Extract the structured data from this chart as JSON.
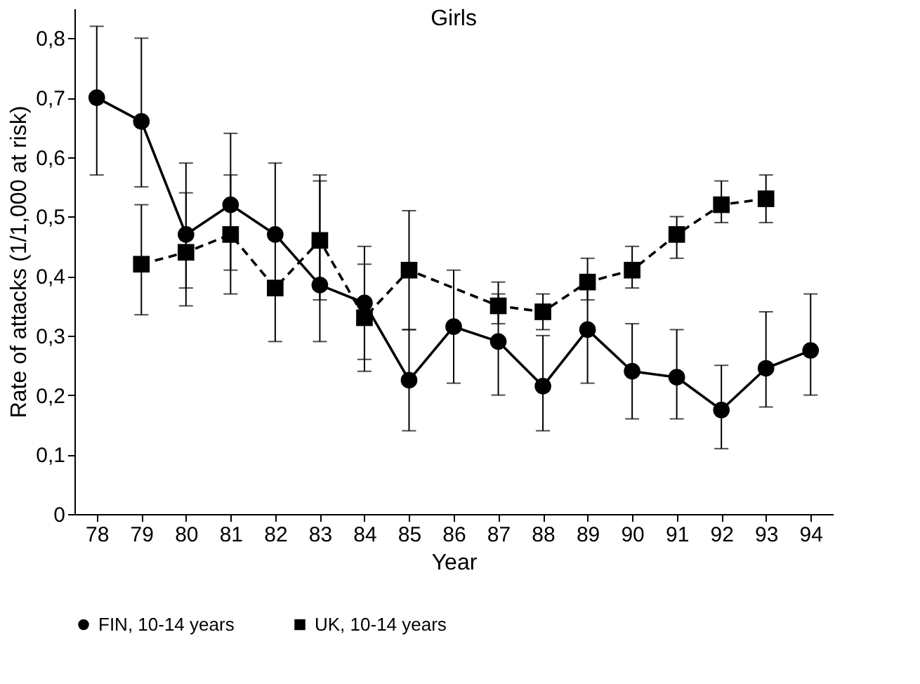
{
  "chart_data": {
    "type": "line",
    "title": "Girls",
    "xlabel": "Year",
    "ylabel": "Rate of attacks (1/1,000 at risk)",
    "xlim": [
      77.5,
      94.5
    ],
    "xticks": [
      78,
      79,
      80,
      81,
      82,
      83,
      84,
      85,
      86,
      87,
      88,
      89,
      90,
      91,
      92,
      93,
      94
    ],
    "ylim": [
      0,
      0.85
    ],
    "yticks": [
      {
        "value": 0,
        "label": "0"
      },
      {
        "value": 0.1,
        "label": "0,1"
      },
      {
        "value": 0.2,
        "label": "0,2"
      },
      {
        "value": 0.3,
        "label": "0,3"
      },
      {
        "value": 0.4,
        "label": "0,4"
      },
      {
        "value": 0.5,
        "label": "0,5"
      },
      {
        "value": 0.6,
        "label": "0,6"
      },
      {
        "value": 0.7,
        "label": "0,7"
      },
      {
        "value": 0.8,
        "label": "0,8"
      }
    ],
    "grid": false,
    "legend": "bottom",
    "series": [
      {
        "name": "FIN, 10-14 years",
        "color": "#000000",
        "marker": "circle",
        "line_style": "solid",
        "x": [
          78,
          79,
          80,
          81,
          82,
          83,
          84,
          85,
          86,
          87,
          88,
          89,
          90,
          91,
          92,
          93,
          94
        ],
        "values": [
          0.7,
          0.66,
          0.47,
          0.52,
          0.47,
          0.385,
          0.355,
          0.225,
          0.315,
          0.29,
          0.215,
          0.31,
          0.24,
          0.23,
          0.175,
          0.245,
          0.275
        ],
        "errors": [
          [
            0.57,
            0.82
          ],
          [
            0.55,
            0.8
          ],
          [
            0.38,
            0.59
          ],
          [
            0.37,
            0.64
          ],
          [
            0.29,
            0.59
          ],
          [
            0.29,
            0.56
          ],
          [
            0.26,
            0.45
          ],
          [
            0.14,
            0.31
          ],
          [
            0.22,
            0.41
          ],
          [
            0.2,
            0.37
          ],
          [
            0.14,
            0.3
          ],
          [
            0.22,
            0.4
          ],
          [
            0.16,
            0.32
          ],
          [
            0.16,
            0.31
          ],
          [
            0.11,
            0.25
          ],
          [
            0.18,
            0.34
          ],
          [
            0.2,
            0.37
          ]
        ]
      },
      {
        "name": "UK, 10-14 years",
        "color": "#000000",
        "marker": "square",
        "line_style": "dashed",
        "x": [
          79,
          80,
          81,
          82,
          83,
          84,
          85,
          87,
          88,
          89,
          90,
          91,
          92,
          93
        ],
        "values": [
          0.42,
          0.44,
          0.47,
          0.38,
          0.46,
          0.33,
          0.41,
          0.35,
          0.34,
          0.39,
          0.41,
          0.47,
          0.52,
          0.53
        ],
        "errors": [
          [
            0.335,
            0.52
          ],
          [
            0.35,
            0.54
          ],
          [
            0.41,
            0.57
          ],
          [
            0.37,
            0.39
          ],
          [
            0.36,
            0.57
          ],
          [
            0.24,
            0.42
          ],
          [
            0.31,
            0.51
          ],
          [
            0.32,
            0.39
          ],
          [
            0.31,
            0.37
          ],
          [
            0.36,
            0.43
          ],
          [
            0.38,
            0.45
          ],
          [
            0.43,
            0.5
          ],
          [
            0.49,
            0.56
          ],
          [
            0.49,
            0.57
          ]
        ]
      }
    ]
  }
}
